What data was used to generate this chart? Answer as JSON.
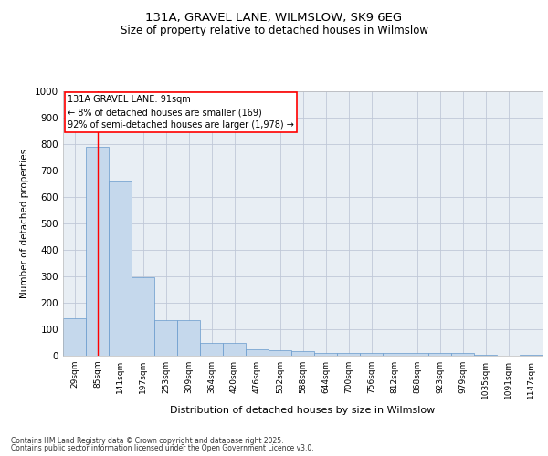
{
  "title_line1": "131A, GRAVEL LANE, WILMSLOW, SK9 6EG",
  "title_line2": "Size of property relative to detached houses in Wilmslow",
  "xlabel": "Distribution of detached houses by size in Wilmslow",
  "ylabel": "Number of detached properties",
  "categories": [
    "29sqm",
    "85sqm",
    "141sqm",
    "197sqm",
    "253sqm",
    "309sqm",
    "364sqm",
    "420sqm",
    "476sqm",
    "532sqm",
    "588sqm",
    "644sqm",
    "700sqm",
    "756sqm",
    "812sqm",
    "868sqm",
    "923sqm",
    "979sqm",
    "1035sqm",
    "1091sqm",
    "1147sqm"
  ],
  "values": [
    140,
    790,
    660,
    295,
    135,
    135,
    50,
    50,
    25,
    20,
    18,
    12,
    10,
    10,
    10,
    10,
    10,
    10,
    5,
    0,
    5
  ],
  "bar_color": "#c5d8ec",
  "bar_edge_color": "#6699cc",
  "grid_color": "#c0c8d8",
  "background_color": "#e8eef4",
  "annotation_line1": "131A GRAVEL LANE: 91sqm",
  "annotation_line2": "← 8% of detached houses are smaller (169)",
  "annotation_line3": "92% of semi-detached houses are larger (1,978) →",
  "annotation_box_color": "#ff0000",
  "red_line_x": 1,
  "ylim": [
    0,
    1000
  ],
  "yticks": [
    0,
    100,
    200,
    300,
    400,
    500,
    600,
    700,
    800,
    900,
    1000
  ],
  "footer_line1": "Contains HM Land Registry data © Crown copyright and database right 2025.",
  "footer_line2": "Contains public sector information licensed under the Open Government Licence v3.0."
}
